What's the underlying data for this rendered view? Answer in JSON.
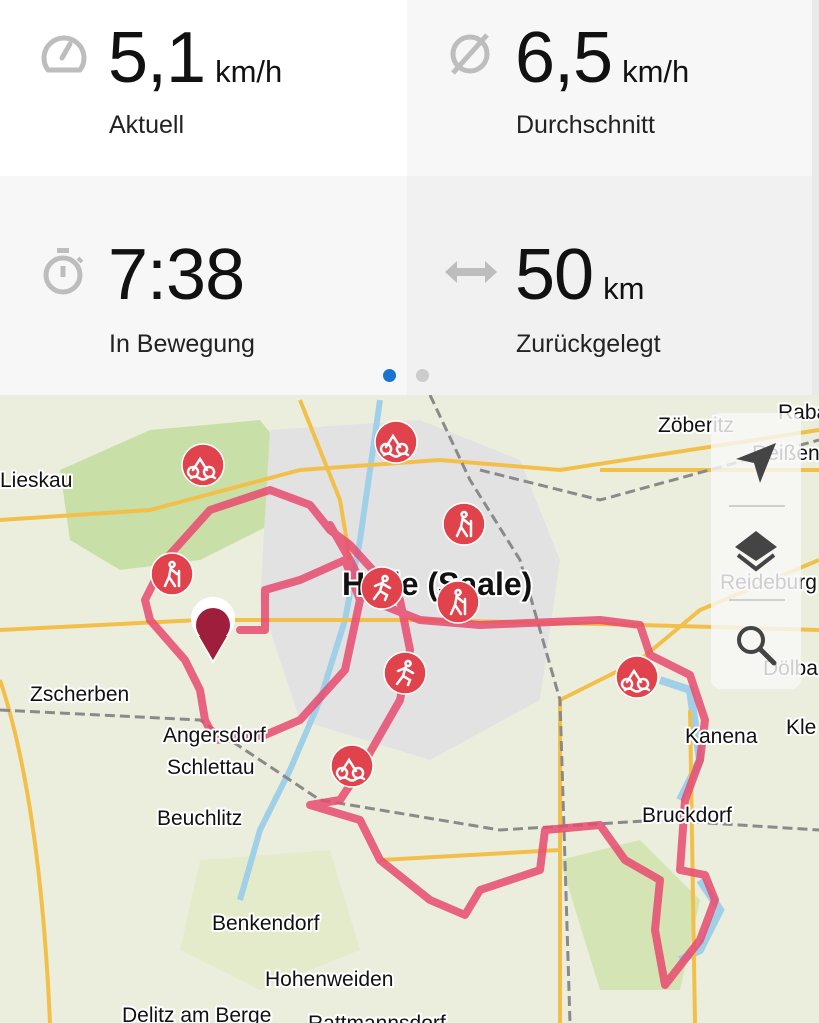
{
  "stats": [
    {
      "icon": "speedometer-icon",
      "value": "5,1",
      "unit": "km/h",
      "label": "Aktuell"
    },
    {
      "icon": "average-icon",
      "value": "6,5",
      "unit": "km/h",
      "label": "Durchschnitt"
    },
    {
      "icon": "stopwatch-icon",
      "value": "7:38",
      "unit": "",
      "label": "In Bewegung"
    },
    {
      "icon": "distance-arrows-icon",
      "value": "50",
      "unit": "km",
      "label": "Zurückgelegt"
    }
  ],
  "pager": {
    "pages": 2,
    "active": 1,
    "active_color": "#1a73d0",
    "inactive_color": "#cccccc"
  },
  "map": {
    "route_color": "#e84a6f",
    "marker_color": "#e0434c",
    "location_pin_color": "#9e1e3c",
    "labels": {
      "lieskau": "Lieskau",
      "zoeberitz": "Zöberitz",
      "raba": "Raba",
      "reissen": "Reißen",
      "halle": "Halle (Saale)",
      "reideburg": "Reideburg",
      "zscherben": "Zscherben",
      "angersdorf": "Angersdorf",
      "schlettau": "Schlettau",
      "beuchlitz": "Beuchlitz",
      "kanena": "Kanena",
      "kle": "Kle",
      "doelbau": "Dölba",
      "bruckdorf": "Bruckdorf",
      "benkendorf": "Benkendorf",
      "hohenweiden": "Hohenweiden",
      "delitz": "Delitz am Berge",
      "rattmannsdorf": "Rattmannsdorf"
    },
    "controls": [
      {
        "icon": "navigate-arrow-icon"
      },
      {
        "icon": "layers-icon"
      },
      {
        "icon": "search-icon"
      }
    ]
  }
}
